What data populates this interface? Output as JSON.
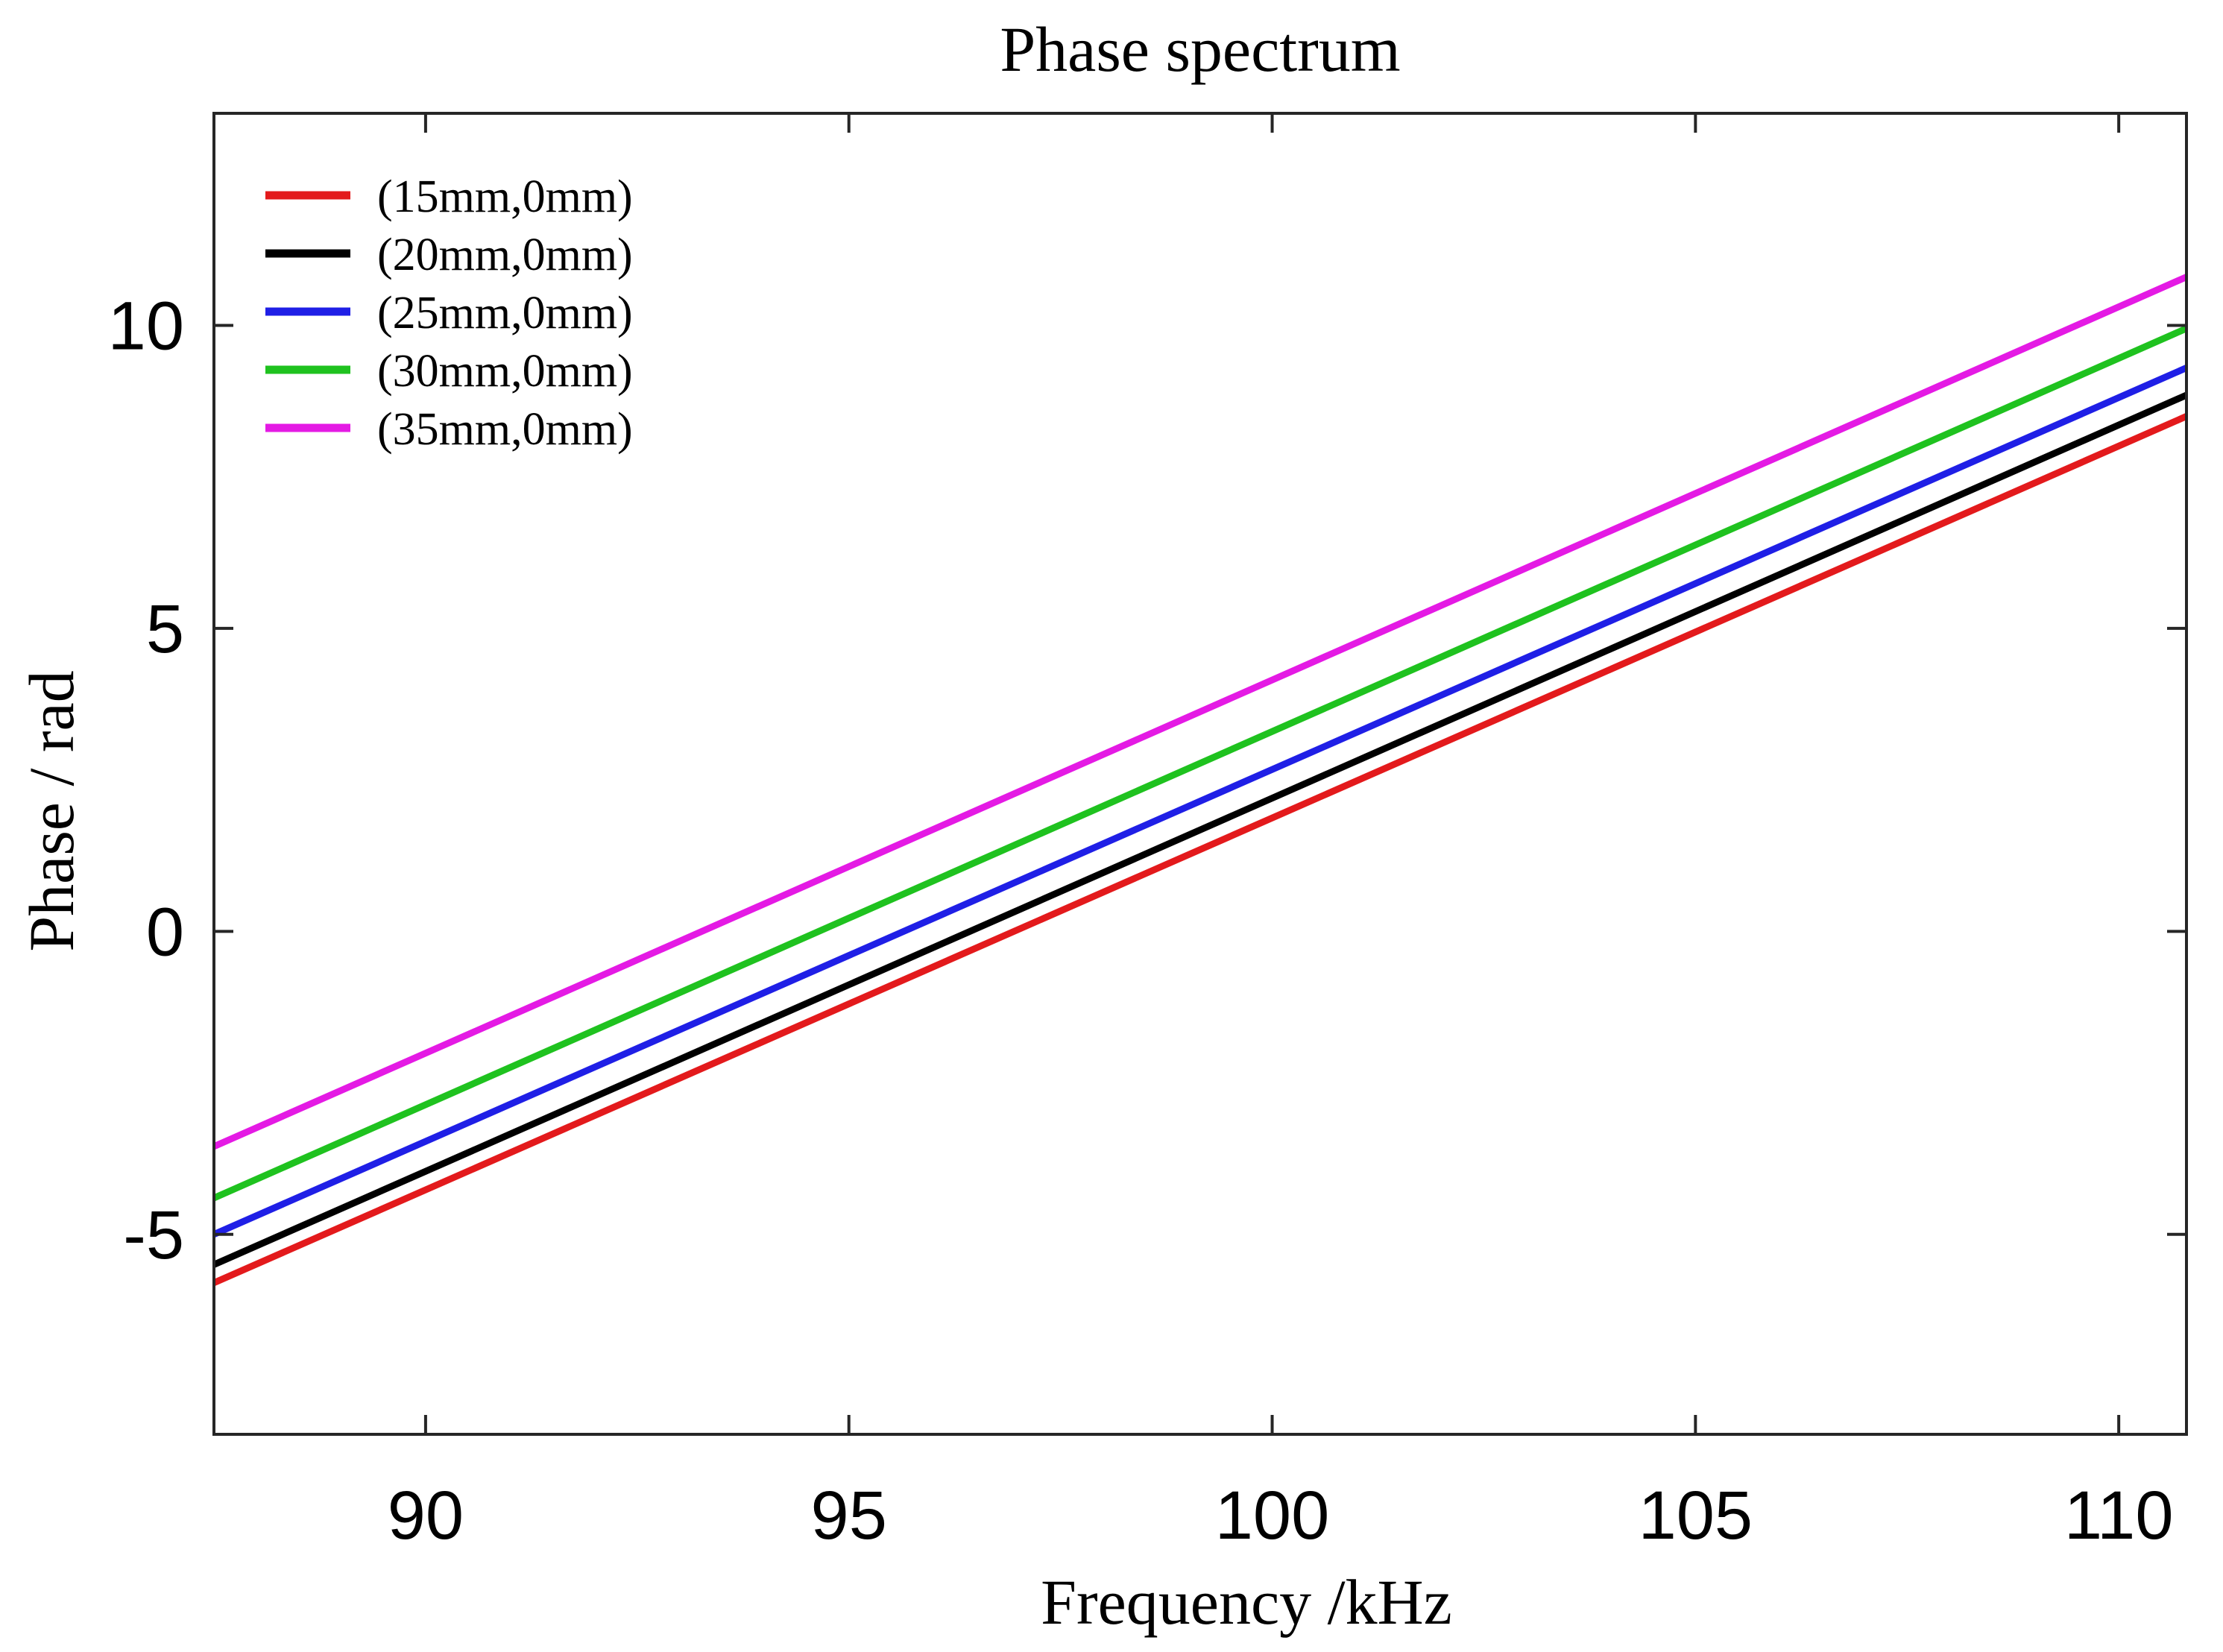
{
  "chart_data": {
    "type": "line",
    "title": "Phase spectrum",
    "xlabel": "Frequency /kHz",
    "ylabel": "Phase / rad",
    "xlim": [
      87.5,
      110.8
    ],
    "ylim": [
      -8.3,
      13.5
    ],
    "xticks": [
      90,
      95,
      100,
      105,
      110
    ],
    "yticks": [
      -5,
      0,
      5,
      10
    ],
    "xtick_labels": [
      "90",
      "95",
      "100",
      "105",
      "110"
    ],
    "ytick_labels": [
      "-5",
      "0",
      "5",
      "10"
    ],
    "grid": false,
    "legend_position": "top-left",
    "series": [
      {
        "name": "(15mm,0mm)",
        "color": "#e31a1c",
        "x": [
          87.5,
          110.8
        ],
        "y": [
          -5.8,
          8.5
        ]
      },
      {
        "name": "(20mm,0mm)",
        "color": "#000000",
        "x": [
          87.5,
          110.8
        ],
        "y": [
          -5.5,
          8.85
        ]
      },
      {
        "name": "(25mm,0mm)",
        "color": "#1f1fe6",
        "x": [
          87.5,
          110.8
        ],
        "y": [
          -5.0,
          9.3
        ]
      },
      {
        "name": "(30mm,0mm)",
        "color": "#1fc21f",
        "x": [
          87.5,
          110.8
        ],
        "y": [
          -4.4,
          9.95
        ]
      },
      {
        "name": "(35mm,0mm)",
        "color": "#e41ae4",
        "x": [
          87.5,
          110.8
        ],
        "y": [
          -3.55,
          10.8
        ]
      }
    ]
  }
}
